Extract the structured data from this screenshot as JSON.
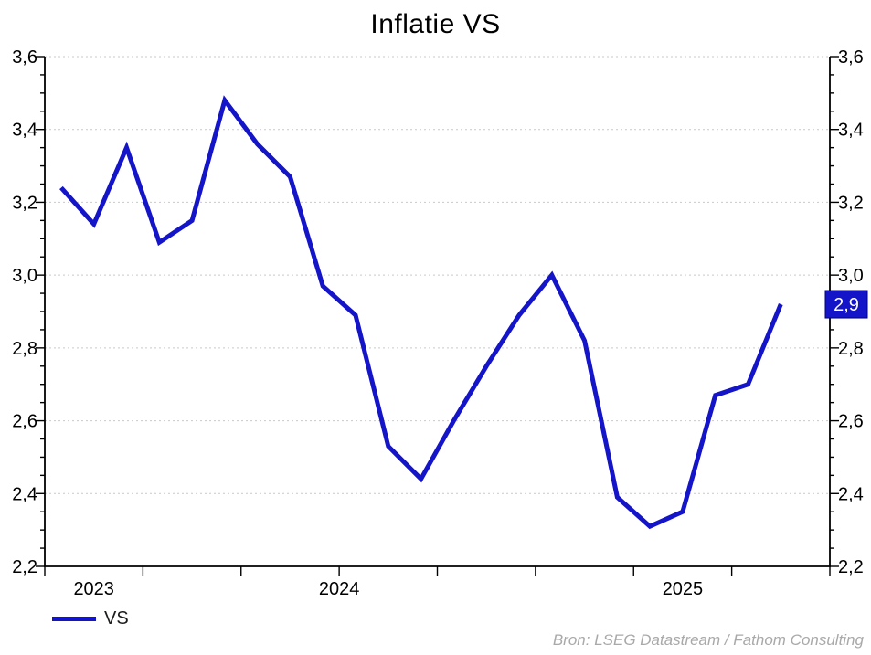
{
  "source_note": "Bron: LSEG Datastream / Fathom Consulting",
  "colors": {
    "line": "#1414c8",
    "badge_bg": "#1414c8",
    "badge_border": "#000080",
    "badge_text": "#ffffff",
    "grid": "#c9c9c9",
    "axis": "#000000",
    "tick_label": "#000000",
    "legend_text": "#1c1c1c",
    "source_text": "#a9a9a9",
    "background": "#ffffff"
  },
  "badge": {
    "label": "2,9"
  },
  "chart_data": {
    "type": "line",
    "title": "Inflatie VS",
    "x": [
      "2023-10",
      "2023-11",
      "2023-12",
      "2024-01",
      "2024-02",
      "2024-03",
      "2024-04",
      "2024-05",
      "2024-06",
      "2024-07",
      "2024-08",
      "2024-09",
      "2024-10",
      "2024-11",
      "2024-12",
      "2025-01",
      "2025-02",
      "2025-03",
      "2025-04",
      "2025-05",
      "2025-06",
      "2025-07",
      "2025-08"
    ],
    "series": [
      {
        "name": "VS",
        "values": [
          3.24,
          3.14,
          3.35,
          3.09,
          3.15,
          3.48,
          3.36,
          3.27,
          2.97,
          2.89,
          2.53,
          2.44,
          2.6,
          2.75,
          2.89,
          3.0,
          2.82,
          2.39,
          2.31,
          2.35,
          2.67,
          2.7,
          2.92
        ]
      }
    ],
    "ylim": [
      2.2,
      3.6
    ],
    "y_major_step": 0.2,
    "y_minor_step": 0.05,
    "y_tick_labels": [
      "2,2",
      "2,4",
      "2,6",
      "2,8",
      "3,0",
      "3,2",
      "3,4",
      "3,6"
    ],
    "y_axis_sides": "both",
    "grid": "horizontal dotted at major ticks",
    "x_axis": {
      "domain_start": "2023-10",
      "domain_end": "2025-10",
      "tick_interval_months": 3,
      "year_labels": [
        "2023",
        "2024",
        "2025"
      ]
    },
    "legend_position": "bottom-left",
    "last_value_label": "2,9"
  }
}
